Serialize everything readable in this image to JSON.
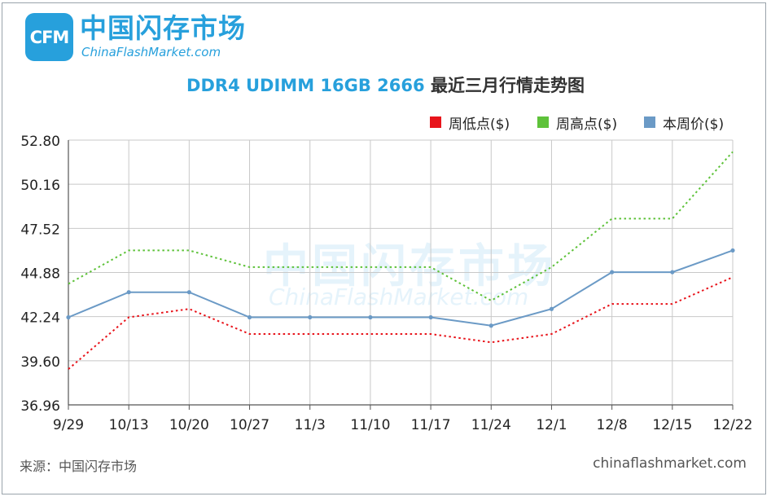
{
  "logo": {
    "badge": "CFM",
    "name_cn": "中国闪存市场",
    "name_en": "ChinaFlashMarket.com"
  },
  "title": {
    "part1": "DDR4 UDIMM 16GB 2666",
    "part2": "最近三月行情走势图"
  },
  "watermark": {
    "cn": "中国闪存市场",
    "en": "ChinaFlashMarket.com"
  },
  "footer": {
    "source": "来源：中国闪存市场",
    "site": "chinaflashmarket.com"
  },
  "chart_data": {
    "type": "line",
    "title": "DDR4 UDIMM 16GB 2666 最近三月行情走势图",
    "categories": [
      "9/29",
      "10/13",
      "10/20",
      "10/27",
      "11/3",
      "11/10",
      "11/17",
      "11/24",
      "12/1",
      "12/8",
      "12/15",
      "12/22"
    ],
    "ylim": [
      36.96,
      52.8
    ],
    "yticks": [
      "36.96",
      "39.60",
      "42.24",
      "44.88",
      "47.52",
      "50.16",
      "52.80"
    ],
    "grid": true,
    "legend_position": "top-right",
    "series": [
      {
        "name": "周低点($)",
        "color": "#e8141b",
        "style": "dotted",
        "values": [
          39.1,
          42.2,
          42.7,
          41.2,
          41.2,
          41.2,
          41.2,
          40.7,
          41.2,
          43.0,
          43.0,
          44.6
        ]
      },
      {
        "name": "周高点($)",
        "color": "#5ec23a",
        "style": "dotted",
        "values": [
          44.2,
          46.2,
          46.2,
          45.2,
          45.2,
          45.2,
          45.2,
          43.2,
          45.2,
          48.1,
          48.1,
          52.1
        ]
      },
      {
        "name": "本周价($)",
        "color": "#6b9ac6",
        "style": "solid",
        "values": [
          42.2,
          43.7,
          43.7,
          42.2,
          42.2,
          42.2,
          42.2,
          41.7,
          42.7,
          44.9,
          44.9,
          46.2
        ]
      }
    ]
  }
}
